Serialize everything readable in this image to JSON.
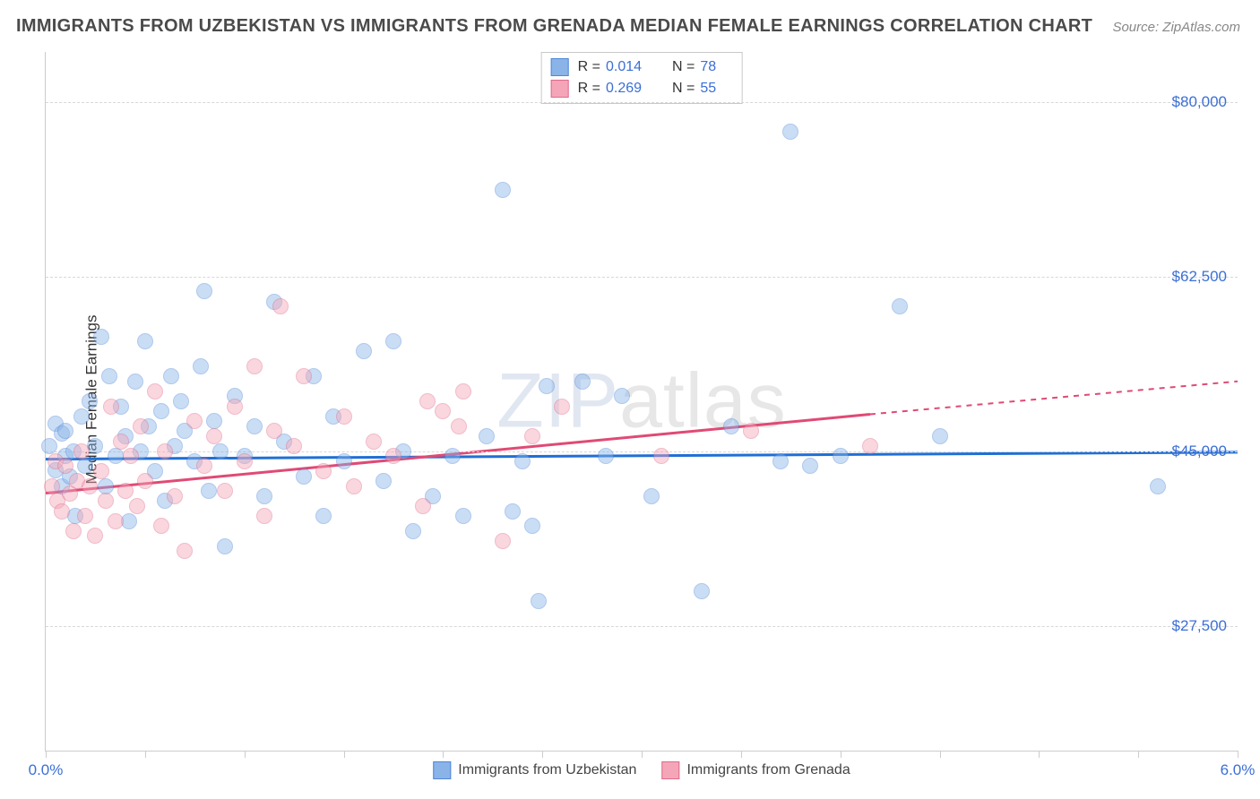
{
  "title": "IMMIGRANTS FROM UZBEKISTAN VS IMMIGRANTS FROM GRENADA MEDIAN FEMALE EARNINGS CORRELATION CHART",
  "source": "Source: ZipAtlas.com",
  "watermark_prefix": "ZIP",
  "watermark_suffix": "atlas",
  "ylabel": "Median Female Earnings",
  "chart": {
    "type": "scatter",
    "background_color": "#ffffff",
    "grid_color": "#d8d8d8",
    "marker_radius": 8,
    "marker_opacity_fill": 0.45,
    "series": [
      {
        "key": "uzbekistan",
        "label": "Immigrants from Uzbekistan",
        "fill_color": "#8ab4e8",
        "stroke_color": "#4f86d8",
        "trend_color": "#1f6fd6",
        "r_value": "0.014",
        "n_value": "78",
        "trend": {
          "x1": 0.0,
          "y1": 44200,
          "x2": 6.0,
          "y2": 44900
        },
        "points": [
          [
            0.02,
            45500
          ],
          [
            0.05,
            47800
          ],
          [
            0.05,
            43100
          ],
          [
            0.08,
            46800
          ],
          [
            0.08,
            41500
          ],
          [
            0.1,
            44500
          ],
          [
            0.1,
            47000
          ],
          [
            0.12,
            42500
          ],
          [
            0.14,
            45000
          ],
          [
            0.15,
            38500
          ],
          [
            0.18,
            48500
          ],
          [
            0.2,
            43500
          ],
          [
            0.22,
            50000
          ],
          [
            0.25,
            45500
          ],
          [
            0.28,
            56500
          ],
          [
            0.3,
            41500
          ],
          [
            0.32,
            52500
          ],
          [
            0.35,
            44500
          ],
          [
            0.38,
            49500
          ],
          [
            0.4,
            46500
          ],
          [
            0.42,
            38000
          ],
          [
            0.45,
            52000
          ],
          [
            0.48,
            45000
          ],
          [
            0.5,
            56000
          ],
          [
            0.52,
            47500
          ],
          [
            0.55,
            43000
          ],
          [
            0.58,
            49000
          ],
          [
            0.6,
            40000
          ],
          [
            0.63,
            52500
          ],
          [
            0.65,
            45500
          ],
          [
            0.68,
            50000
          ],
          [
            0.7,
            47000
          ],
          [
            0.75,
            44000
          ],
          [
            0.78,
            53500
          ],
          [
            0.8,
            61000
          ],
          [
            0.82,
            41000
          ],
          [
            0.85,
            48000
          ],
          [
            0.88,
            45000
          ],
          [
            0.9,
            35500
          ],
          [
            0.95,
            50500
          ],
          [
            1.0,
            44500
          ],
          [
            1.05,
            47500
          ],
          [
            1.1,
            40500
          ],
          [
            1.15,
            60000
          ],
          [
            1.2,
            46000
          ],
          [
            1.3,
            42500
          ],
          [
            1.35,
            52500
          ],
          [
            1.4,
            38500
          ],
          [
            1.45,
            48500
          ],
          [
            1.5,
            44000
          ],
          [
            1.6,
            55000
          ],
          [
            1.7,
            42000
          ],
          [
            1.75,
            56000
          ],
          [
            1.8,
            45000
          ],
          [
            1.85,
            37000
          ],
          [
            1.95,
            40500
          ],
          [
            2.05,
            44500
          ],
          [
            2.1,
            38500
          ],
          [
            2.22,
            46500
          ],
          [
            2.35,
            39000
          ],
          [
            2.3,
            71200
          ],
          [
            2.4,
            44000
          ],
          [
            2.45,
            37500
          ],
          [
            2.48,
            30000
          ],
          [
            2.52,
            51500
          ],
          [
            2.7,
            52000
          ],
          [
            2.82,
            44500
          ],
          [
            2.9,
            50500
          ],
          [
            3.05,
            40500
          ],
          [
            3.3,
            31000
          ],
          [
            3.45,
            47500
          ],
          [
            3.7,
            44000
          ],
          [
            3.75,
            77000
          ],
          [
            3.85,
            43500
          ],
          [
            4.0,
            44500
          ],
          [
            4.3,
            59500
          ],
          [
            4.5,
            46500
          ],
          [
            5.6,
            41500
          ]
        ]
      },
      {
        "key": "grenada",
        "label": "Immigrants from Grenada",
        "fill_color": "#f4a6b8",
        "stroke_color": "#e06a88",
        "trend_color": "#e04a75",
        "r_value": "0.269",
        "n_value": "55",
        "trend_solid": {
          "x1": 0.0,
          "y1": 40800,
          "x2": 4.15,
          "y2": 48700
        },
        "trend_dashed": {
          "x1": 4.15,
          "y1": 48700,
          "x2": 6.0,
          "y2": 52000
        },
        "points": [
          [
            0.03,
            41500
          ],
          [
            0.05,
            44000
          ],
          [
            0.06,
            40000
          ],
          [
            0.08,
            39000
          ],
          [
            0.1,
            43500
          ],
          [
            0.12,
            40800
          ],
          [
            0.14,
            37000
          ],
          [
            0.16,
            42000
          ],
          [
            0.18,
            45000
          ],
          [
            0.2,
            38500
          ],
          [
            0.22,
            41500
          ],
          [
            0.25,
            36500
          ],
          [
            0.28,
            43000
          ],
          [
            0.3,
            40000
          ],
          [
            0.33,
            49500
          ],
          [
            0.35,
            38000
          ],
          [
            0.38,
            46000
          ],
          [
            0.4,
            41000
          ],
          [
            0.43,
            44500
          ],
          [
            0.46,
            39500
          ],
          [
            0.48,
            47500
          ],
          [
            0.5,
            42000
          ],
          [
            0.55,
            51000
          ],
          [
            0.58,
            37500
          ],
          [
            0.6,
            45000
          ],
          [
            0.65,
            40500
          ],
          [
            0.7,
            35000
          ],
          [
            0.75,
            48000
          ],
          [
            0.8,
            43500
          ],
          [
            0.85,
            46500
          ],
          [
            0.9,
            41000
          ],
          [
            0.95,
            49500
          ],
          [
            1.0,
            44000
          ],
          [
            1.05,
            53500
          ],
          [
            1.1,
            38500
          ],
          [
            1.15,
            47000
          ],
          [
            1.18,
            59500
          ],
          [
            1.25,
            45500
          ],
          [
            1.3,
            52500
          ],
          [
            1.4,
            43000
          ],
          [
            1.5,
            48500
          ],
          [
            1.55,
            41500
          ],
          [
            1.65,
            46000
          ],
          [
            1.75,
            44500
          ],
          [
            1.9,
            39500
          ],
          [
            1.92,
            50000
          ],
          [
            2.0,
            49000
          ],
          [
            2.08,
            47500
          ],
          [
            2.1,
            51000
          ],
          [
            2.3,
            36000
          ],
          [
            2.45,
            46500
          ],
          [
            2.6,
            49500
          ],
          [
            3.1,
            44500
          ],
          [
            3.55,
            47000
          ],
          [
            4.15,
            45500
          ]
        ]
      }
    ],
    "y_axis": {
      "min": 15000,
      "max": 85000,
      "ticks": [
        {
          "value": 27500,
          "label": "$27,500"
        },
        {
          "value": 45000,
          "label": "$45,000"
        },
        {
          "value": 62500,
          "label": "$62,500"
        },
        {
          "value": 80000,
          "label": "$80,000"
        }
      ],
      "label_color": "#3b6fd6",
      "label_fontsize": 17
    },
    "x_axis": {
      "min": 0.0,
      "max": 6.0,
      "ticks": [
        0.0,
        0.5,
        1.0,
        1.5,
        2.0,
        2.5,
        3.0,
        3.5,
        4.0,
        4.5,
        5.0,
        5.5,
        6.0
      ],
      "end_labels": [
        {
          "value": 0.0,
          "label": "0.0%"
        },
        {
          "value": 6.0,
          "label": "6.0%"
        }
      ],
      "label_color": "#3b6fd6",
      "label_fontsize": 17
    }
  }
}
